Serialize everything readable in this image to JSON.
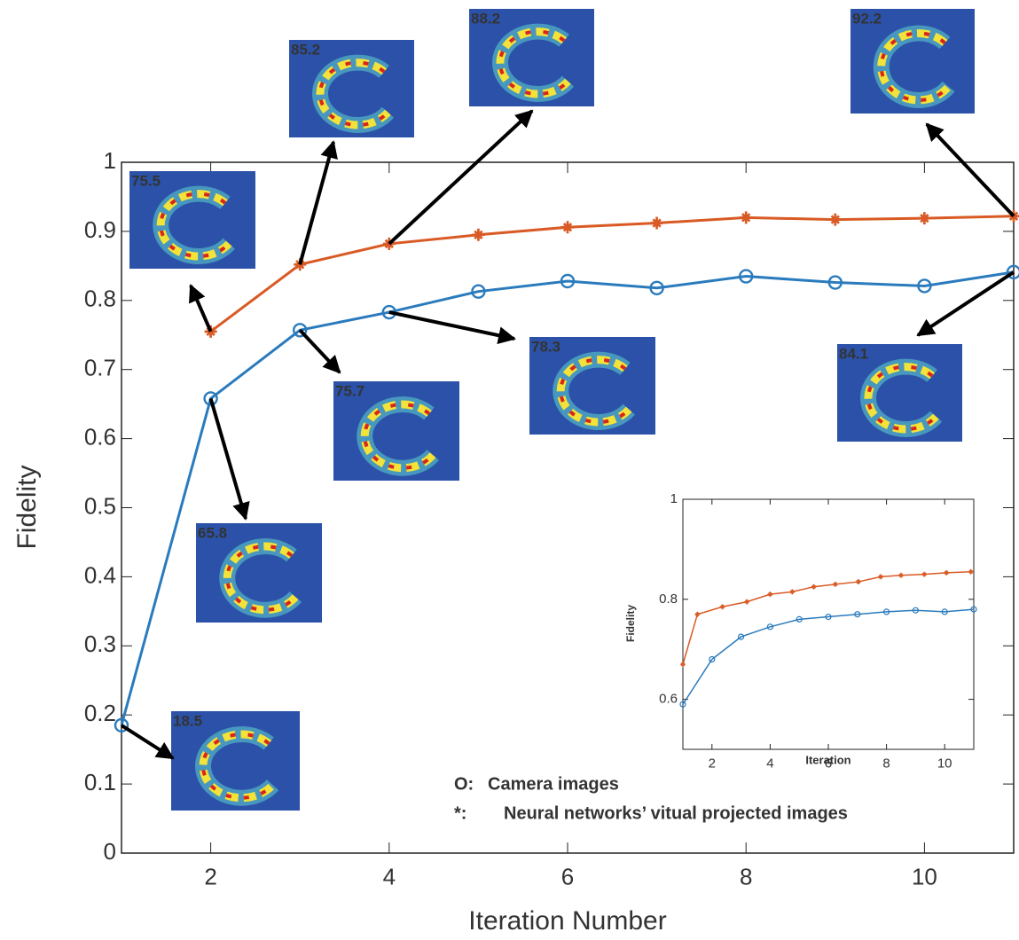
{
  "chart_data": [
    {
      "type": "line",
      "x_label": "Iteration Number",
      "y_label": "Fidelity",
      "x": [
        1,
        2,
        3,
        4,
        5,
        6,
        7,
        8,
        9,
        10,
        11
      ],
      "series": [
        {
          "name": "Camera images",
          "legend_symbol": "O:",
          "color": "#2a7bbd",
          "marker": "circle",
          "values": [
            0.185,
            0.658,
            0.757,
            0.783,
            0.813,
            0.828,
            0.818,
            0.835,
            0.826,
            0.821,
            0.841
          ]
        },
        {
          "name": "Neural networks’ vitual projected images",
          "legend_symbol": "*:",
          "color": "#d95a24",
          "marker": "star",
          "values": [
            null,
            0.755,
            0.852,
            0.882,
            0.895,
            0.906,
            0.912,
            0.92,
            0.917,
            0.919,
            0.922
          ]
        }
      ],
      "annotations": [
        "75.5",
        "85.2",
        "88.2",
        "92.2",
        "65.8",
        "75.7",
        "78.3",
        "84.1",
        "18.5"
      ],
      "xlim": [
        1,
        11
      ],
      "xticks": [
        2,
        4,
        6,
        8,
        10
      ],
      "ylim": [
        0,
        1
      ],
      "yticks": [
        0,
        0.1,
        0.2,
        0.3,
        0.4,
        0.5,
        0.6,
        0.7,
        0.8,
        0.9,
        1
      ],
      "grid": false
    },
    {
      "type": "line",
      "x_label": "Iteration",
      "y_label": "Fidelity",
      "series": [
        {
          "color": "#2a7bbd",
          "marker": "circle",
          "x": [
            1,
            2,
            3,
            4,
            5,
            6,
            7,
            8,
            9,
            10,
            11
          ],
          "values": [
            0.59,
            0.68,
            0.725,
            0.745,
            0.76,
            0.765,
            0.77,
            0.775,
            0.778,
            0.775,
            0.78
          ]
        },
        {
          "color": "#d95a24",
          "marker": "star",
          "x": [
            1,
            1.5,
            2.36,
            3.2,
            4,
            4.76,
            5.5,
            6.24,
            7.03,
            7.8,
            8.5,
            9.3,
            10.06,
            10.9
          ],
          "values": [
            0.67,
            0.77,
            0.785,
            0.795,
            0.81,
            0.815,
            0.825,
            0.83,
            0.835,
            0.845,
            0.848,
            0.85,
            0.853,
            0.855
          ]
        }
      ],
      "xlim": [
        1,
        11
      ],
      "xticks": [
        2,
        4,
        6,
        8,
        10
      ],
      "ylim": [
        0.5,
        1
      ],
      "yticks": [
        0.6,
        0.8,
        1
      ],
      "grid": false
    }
  ]
}
